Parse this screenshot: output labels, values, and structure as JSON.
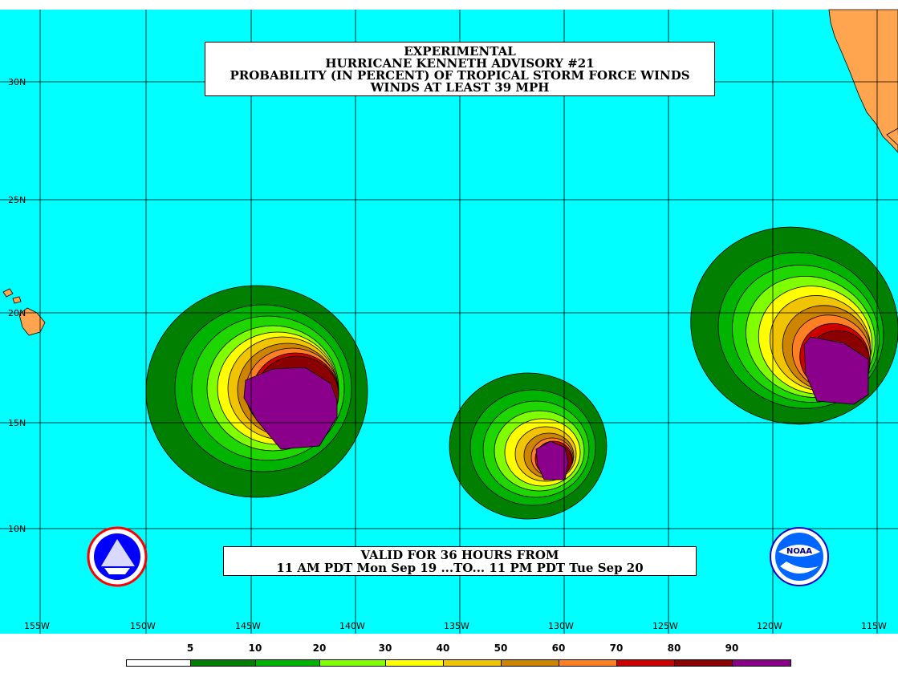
{
  "title": {
    "line1": "EXPERIMENTAL",
    "line2": "HURRICANE KENNETH ADVISORY #21",
    "line3": "PROBABILITY (IN PERCENT) OF TROPICAL STORM FORCE WINDS",
    "line4": "WINDS AT LEAST 39 MPH"
  },
  "valid": {
    "line1": "VALID FOR 36 HOURS FROM",
    "line2": "11 AM PDT Mon Sep 19 ...TO... 11 PM PDT Tue Sep 20"
  },
  "colors": {
    "ocean": "#00ffff",
    "land": "#ffa54f",
    "levels": [
      "#ffffff",
      "#007f00",
      "#00b300",
      "#1fd600",
      "#7fff00",
      "#ffff00",
      "#f0c400",
      "#cd8500",
      "#ff7f24",
      "#cd0000",
      "#8b0000",
      "#8b008b"
    ]
  },
  "legend": {
    "labels": [
      "5",
      "10",
      "20",
      "30",
      "40",
      "50",
      "60",
      "70",
      "80",
      "90"
    ],
    "colors": [
      "#ffffff",
      "#007f00",
      "#00b300",
      "#7fff00",
      "#ffff00",
      "#f0c400",
      "#cd8500",
      "#ff7f24",
      "#cd0000",
      "#8b0000",
      "#8b008b"
    ]
  },
  "lat_labels": [
    "30N",
    "25N",
    "20N",
    "15N",
    "10N"
  ],
  "lon_labels": [
    "155W",
    "150W",
    "145W",
    "140W",
    "135W",
    "130W",
    "125W",
    "120W",
    "115W"
  ],
  "logos": {
    "left": "nws-logo",
    "right_text": "NOAA"
  }
}
